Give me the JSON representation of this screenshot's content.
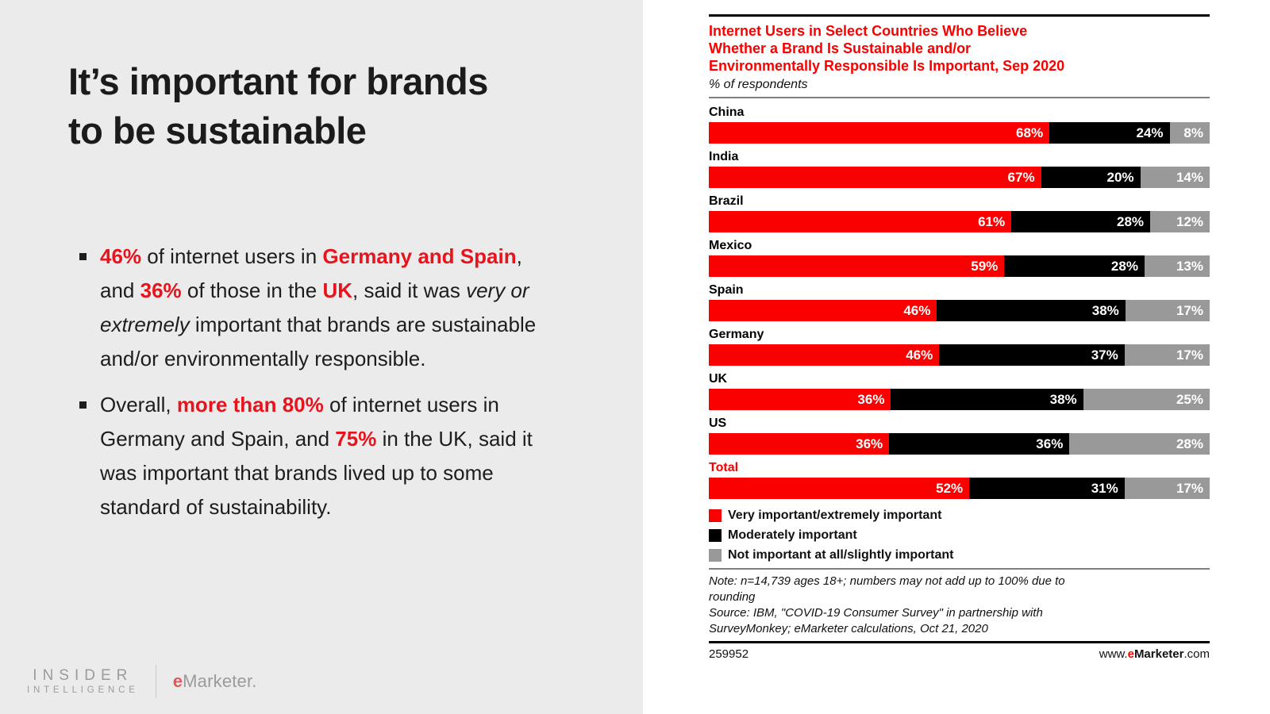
{
  "colors": {
    "panel_gray": "#ebebeb",
    "accent_red_chart": "#fb0000",
    "accent_red_text": "#e8141d",
    "bar_black": "#000000",
    "bar_gray": "#999999"
  },
  "left_panel": {
    "title_lines": [
      "It’s important for brands",
      "to be sustainable"
    ],
    "bullets": [
      {
        "segments": [
          {
            "t": "46%",
            "s": "rb"
          },
          {
            "t": " of internet users in ",
            "s": "p"
          },
          {
            "t": "Germany and Spain",
            "s": "rb"
          },
          {
            "t": ", and ",
            "s": "p"
          },
          {
            "t": "36%",
            "s": "rb"
          },
          {
            "t": " of those in the ",
            "s": "p"
          },
          {
            "t": "UK",
            "s": "rb"
          },
          {
            "t": ", said it was ",
            "s": "p"
          },
          {
            "t": "very or extremely",
            "s": "i"
          },
          {
            "t": " important that brands are sustainable and/or environmentally responsible.",
            "s": "p"
          }
        ]
      },
      {
        "segments": [
          {
            "t": "Overall, ",
            "s": "p"
          },
          {
            "t": "more than 80%",
            "s": "rb"
          },
          {
            "t": " of internet users in Germany and Spain, and ",
            "s": "p"
          },
          {
            "t": "75%",
            "s": "rb"
          },
          {
            "t": " in the UK, said it was important that brands lived up to some standard of sustainability.",
            "s": "p"
          }
        ]
      }
    ],
    "logo": {
      "insider_top": "INSIDER",
      "insider_bottom": "INTELLIGENCE",
      "emarketer_e": "e",
      "emarketer_rest": "Marketer."
    }
  },
  "chart": {
    "title_lines": [
      "Internet Users in Select Countries Who Believe",
      "Whether a Brand Is Sustainable and/or",
      "Environmentally Responsible Is Important, Sep 2020"
    ],
    "subtitle": "% of respondents",
    "note_lines": [
      "Note: n=14,739 ages 18+; numbers may not add up to 100% due to",
      "rounding",
      "Source: IBM, \"COVID-19 Consumer Survey\" in partnership with",
      "SurveyMonkey; eMarketer calculations, Oct 21, 2020"
    ],
    "footer": {
      "chart_id": "259952",
      "url_prefix": "www.",
      "url_e": "e",
      "url_brand": "Marketer",
      "url_suffix": ".com"
    }
  },
  "chart_data": {
    "type": "bar",
    "orientation": "horizontal",
    "stacked": true,
    "title": "Internet Users in Select Countries Who Believe Whether a Brand Is Sustainable and/or Environmentally Responsible Is Important, Sep 2020",
    "subtitle": "% of respondents",
    "categories": [
      "China",
      "India",
      "Brazil",
      "Mexico",
      "Spain",
      "Germany",
      "UK",
      "US",
      "Total"
    ],
    "series": [
      {
        "name": "Very important/extremely important",
        "color": "#fb0000",
        "values": [
          68,
          67,
          61,
          59,
          46,
          46,
          36,
          36,
          52
        ]
      },
      {
        "name": "Moderately important",
        "color": "#000000",
        "values": [
          24,
          20,
          28,
          28,
          38,
          37,
          38,
          36,
          31
        ]
      },
      {
        "name": "Not important at all/slightly important",
        "color": "#999999",
        "values": [
          8,
          14,
          12,
          13,
          17,
          17,
          25,
          28,
          17
        ]
      }
    ],
    "value_suffix": "%",
    "xlim": [
      0,
      100
    ],
    "grid": false,
    "legend_position": "below",
    "highlighted_category": "Total"
  }
}
